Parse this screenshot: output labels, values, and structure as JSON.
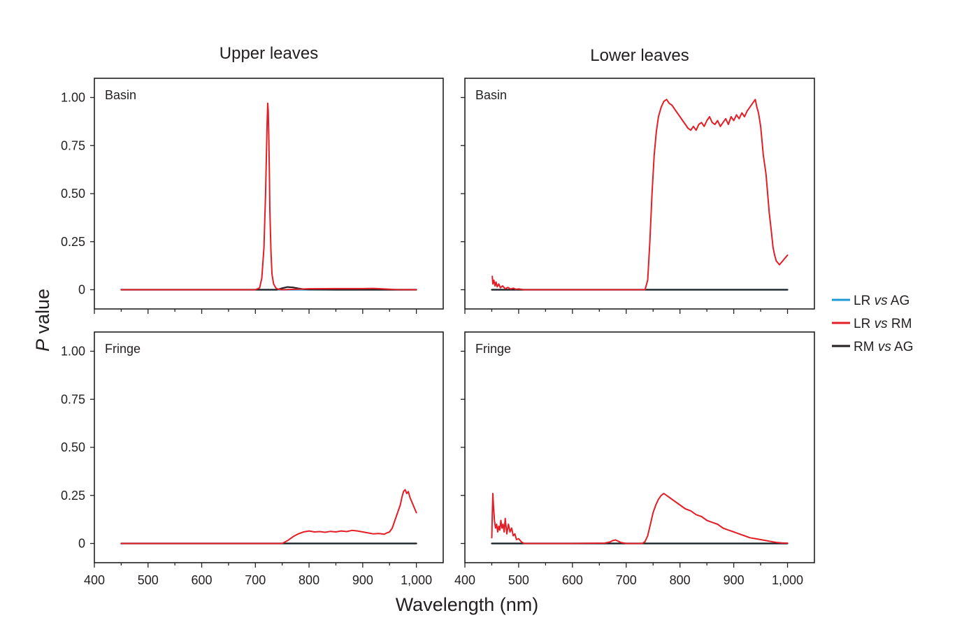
{
  "chart_data": {
    "type": "line",
    "column_titles": [
      "Upper leaves",
      "Lower leaves"
    ],
    "xlabel": "Wavelength (nm)",
    "ylabel_italic": "P",
    "ylabel_rest": " value",
    "xlim": [
      400,
      1050
    ],
    "ylim": [
      -0.1,
      1.1
    ],
    "x_ticks": [
      400,
      500,
      600,
      700,
      800,
      900,
      1000
    ],
    "x_tick_labels": [
      "400",
      "500",
      "600",
      "700",
      "800",
      "900",
      "1,000"
    ],
    "y_ticks": [
      0,
      0.25,
      0.5,
      0.75,
      1.0
    ],
    "y_tick_labels": [
      "0",
      "0.25",
      "0.50",
      "0.75",
      "1.00"
    ],
    "legend": [
      {
        "pre": "LR ",
        "italic": "vs",
        "post": " AG",
        "color": "#1b9ad6"
      },
      {
        "pre": "LR ",
        "italic": "vs",
        "post": " RM",
        "color": "#e31e26"
      },
      {
        "pre": "RM ",
        "italic": "vs",
        "post": " AG",
        "color": "#231f20"
      }
    ],
    "panels": [
      {
        "id": "upper-basin",
        "label": "Basin",
        "col": 0,
        "row": 0,
        "series": [
          {
            "name": "LR vs AG",
            "color": "#1b9ad6",
            "x": [
              450,
              1000
            ],
            "y": [
              0,
              0
            ]
          },
          {
            "name": "RM vs AG",
            "color": "#231f20",
            "x": [
              450,
              740,
              750,
              760,
              770,
              780,
              790,
              800,
              850,
              1000
            ],
            "y": [
              0,
              0,
              0.008,
              0.014,
              0.012,
              0.007,
              0.003,
              0.001,
              0,
              0
            ]
          },
          {
            "name": "LR vs RM",
            "color": "#e31e26",
            "x": [
              450,
              700,
              708,
              712,
              716,
              719,
              721,
              722,
              723,
              724,
              725,
              726,
              727,
              729,
              731,
              734,
              738,
              742,
              750,
              800,
              850,
              900,
              920,
              940,
              960,
              1000
            ],
            "y": [
              0,
              0,
              0.01,
              0.06,
              0.22,
              0.5,
              0.75,
              0.88,
              0.97,
              0.93,
              0.8,
              0.62,
              0.42,
              0.2,
              0.08,
              0.03,
              0.01,
              0.003,
              0,
              0.005,
              0.006,
              0.006,
              0.007,
              0.004,
              0.001,
              0
            ]
          }
        ]
      },
      {
        "id": "lower-basin",
        "label": "Basin",
        "col": 1,
        "row": 0,
        "series": [
          {
            "name": "LR vs AG",
            "color": "#1b9ad6",
            "x": [
              450,
              1000
            ],
            "y": [
              0,
              0
            ]
          },
          {
            "name": "RM vs AG",
            "color": "#231f20",
            "x": [
              450,
              1000
            ],
            "y": [
              0,
              0
            ]
          },
          {
            "name": "LR vs RM",
            "color": "#e31e26",
            "x": [
              451,
              452,
              454,
              456,
              458,
              460,
              463,
              466,
              470,
              475,
              480,
              485,
              490,
              495,
              500,
              510,
              600,
              700,
              735,
              740,
              744,
              748,
              752,
              756,
              760,
              765,
              770,
              775,
              780,
              785,
              790,
              795,
              800,
              805,
              810,
              815,
              820,
              825,
              830,
              835,
              840,
              845,
              850,
              855,
              860,
              865,
              870,
              875,
              880,
              885,
              890,
              895,
              900,
              905,
              910,
              915,
              920,
              925,
              930,
              935,
              940,
              943,
              946,
              950,
              955,
              960,
              963,
              966,
              970,
              973,
              976,
              979,
              982,
              985,
              988,
              991,
              994,
              997,
              1000
            ],
            "y": [
              0.07,
              0.03,
              0.05,
              0.02,
              0.04,
              0.015,
              0.03,
              0.01,
              0.02,
              0.005,
              0.012,
              0.004,
              0.008,
              0.002,
              0.004,
              0,
              0,
              0,
              0,
              0.05,
              0.25,
              0.5,
              0.7,
              0.82,
              0.9,
              0.95,
              0.98,
              0.99,
              0.97,
              0.96,
              0.94,
              0.92,
              0.9,
              0.88,
              0.86,
              0.84,
              0.83,
              0.85,
              0.83,
              0.86,
              0.87,
              0.85,
              0.88,
              0.9,
              0.87,
              0.86,
              0.88,
              0.85,
              0.87,
              0.89,
              0.86,
              0.9,
              0.88,
              0.91,
              0.89,
              0.92,
              0.9,
              0.93,
              0.95,
              0.97,
              0.99,
              0.95,
              0.92,
              0.85,
              0.7,
              0.6,
              0.5,
              0.4,
              0.3,
              0.22,
              0.18,
              0.15,
              0.14,
              0.13,
              0.14,
              0.15,
              0.16,
              0.17,
              0.18
            ]
          }
        ]
      },
      {
        "id": "upper-fringe",
        "label": "Fringe",
        "col": 0,
        "row": 1,
        "series": [
          {
            "name": "LR vs AG",
            "color": "#1b9ad6",
            "x": [
              450,
              1000
            ],
            "y": [
              0,
              0
            ]
          },
          {
            "name": "RM vs AG",
            "color": "#231f20",
            "x": [
              450,
              1000
            ],
            "y": [
              0,
              0
            ]
          },
          {
            "name": "LR vs RM",
            "color": "#e31e26",
            "x": [
              450,
              750,
              760,
              770,
              780,
              790,
              800,
              810,
              820,
              830,
              840,
              850,
              860,
              870,
              880,
              890,
              900,
              910,
              920,
              930,
              940,
              945,
              950,
              955,
              960,
              965,
              970,
              973,
              976,
              979,
              982,
              985,
              988,
              991,
              994,
              997,
              1000
            ],
            "y": [
              0,
              0,
              0.015,
              0.035,
              0.05,
              0.06,
              0.065,
              0.06,
              0.062,
              0.058,
              0.063,
              0.06,
              0.065,
              0.062,
              0.068,
              0.065,
              0.06,
              0.055,
              0.05,
              0.052,
              0.048,
              0.055,
              0.06,
              0.08,
              0.12,
              0.16,
              0.2,
              0.24,
              0.27,
              0.28,
              0.26,
              0.27,
              0.24,
              0.22,
              0.2,
              0.18,
              0.16
            ]
          }
        ]
      },
      {
        "id": "lower-fringe",
        "label": "Fringe",
        "col": 1,
        "row": 1,
        "series": [
          {
            "name": "LR vs AG",
            "color": "#1b9ad6",
            "x": [
              450,
              1000
            ],
            "y": [
              0,
              0
            ]
          },
          {
            "name": "RM vs AG",
            "color": "#231f20",
            "x": [
              450,
              1000
            ],
            "y": [
              0,
              0
            ]
          },
          {
            "name": "LR vs RM",
            "color": "#e31e26",
            "x": [
              450,
              451,
              452,
              453,
              455,
              457,
              459,
              461,
              463,
              465,
              467,
              469,
              471,
              473,
              475,
              478,
              481,
              484,
              487,
              490,
              493,
              496,
              500,
              505,
              510,
              600,
              660,
              670,
              675,
              680,
              685,
              690,
              700,
              730,
              735,
              740,
              745,
              750,
              755,
              760,
              765,
              770,
              775,
              780,
              790,
              800,
              810,
              820,
              830,
              840,
              850,
              860,
              870,
              880,
              890,
              900,
              910,
              920,
              930,
              940,
              950,
              960,
              970,
              980,
              990,
              1000
            ],
            "y": [
              0.03,
              0.15,
              0.26,
              0.2,
              0.12,
              0.08,
              0.1,
              0.06,
              0.09,
              0.07,
              0.12,
              0.08,
              0.1,
              0.06,
              0.13,
              0.05,
              0.1,
              0.06,
              0.08,
              0.04,
              0.05,
              0.02,
              0.025,
              0.008,
              0,
              0,
              0.002,
              0.008,
              0.015,
              0.018,
              0.012,
              0.005,
              0,
              0,
              0.01,
              0.04,
              0.1,
              0.16,
              0.2,
              0.23,
              0.25,
              0.26,
              0.25,
              0.24,
              0.22,
              0.2,
              0.18,
              0.17,
              0.15,
              0.14,
              0.12,
              0.11,
              0.1,
              0.08,
              0.07,
              0.06,
              0.05,
              0.04,
              0.03,
              0.025,
              0.02,
              0.015,
              0.01,
              0.005,
              0.003,
              0.002
            ]
          }
        ]
      }
    ]
  }
}
